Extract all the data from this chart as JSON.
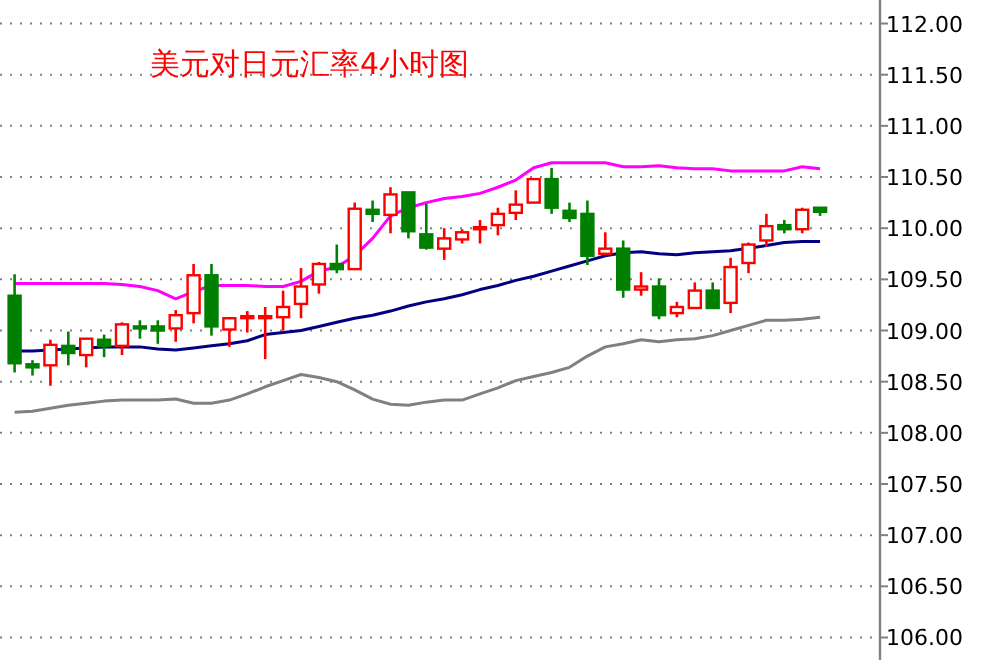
{
  "chart_data": {
    "type": "candlestick",
    "title": "美元对日元汇率4小时图",
    "categories": [
      null,
      null,
      null,
      null,
      null,
      null,
      null,
      null,
      null,
      null,
      null,
      null,
      null,
      null,
      null,
      null,
      null,
      null,
      null,
      null,
      null,
      null,
      null,
      null,
      null,
      null,
      null,
      null,
      null,
      null,
      null,
      null,
      null,
      null,
      null,
      null,
      null,
      null,
      null,
      null,
      null,
      null,
      null,
      null,
      null,
      null
    ],
    "ohlc": [
      [
        109.34,
        109.55,
        108.59,
        108.68
      ],
      [
        108.67,
        108.71,
        108.56,
        108.64
      ],
      [
        108.66,
        108.91,
        108.46,
        108.86
      ],
      [
        108.85,
        108.99,
        108.66,
        108.78
      ],
      [
        108.76,
        108.92,
        108.64,
        108.92
      ],
      [
        108.91,
        108.96,
        108.74,
        108.85
      ],
      [
        108.85,
        109.08,
        108.76,
        109.06
      ],
      [
        109.04,
        109.1,
        108.92,
        109.02
      ],
      [
        109.04,
        109.1,
        108.87,
        109.0
      ],
      [
        109.02,
        109.2,
        108.89,
        109.15
      ],
      [
        109.17,
        109.65,
        109.07,
        109.54
      ],
      [
        109.54,
        109.65,
        108.95,
        109.04
      ],
      [
        109.01,
        109.13,
        108.84,
        109.12
      ],
      [
        109.13,
        109.19,
        108.98,
        109.14
      ],
      [
        109.13,
        109.23,
        108.72,
        109.14
      ],
      [
        109.13,
        109.39,
        109.0,
        109.23
      ],
      [
        109.26,
        109.61,
        109.12,
        109.43
      ],
      [
        109.45,
        109.67,
        109.36,
        109.65
      ],
      [
        109.65,
        109.84,
        109.56,
        109.6
      ],
      [
        109.6,
        110.25,
        109.6,
        110.19
      ],
      [
        110.18,
        110.27,
        110.06,
        110.14
      ],
      [
        110.13,
        110.4,
        109.95,
        110.33
      ],
      [
        110.35,
        110.35,
        109.9,
        109.97
      ],
      [
        109.94,
        110.24,
        109.79,
        109.81
      ],
      [
        109.8,
        110.0,
        109.69,
        109.9
      ],
      [
        109.89,
        109.99,
        109.85,
        109.96
      ],
      [
        109.99,
        110.08,
        109.85,
        110.01
      ],
      [
        110.03,
        110.2,
        109.93,
        110.14
      ],
      [
        110.15,
        110.37,
        110.08,
        110.23
      ],
      [
        110.25,
        110.48,
        110.25,
        110.48
      ],
      [
        110.48,
        110.59,
        110.14,
        110.2
      ],
      [
        110.17,
        110.25,
        110.06,
        110.1
      ],
      [
        110.14,
        110.27,
        109.64,
        109.73
      ],
      [
        109.75,
        109.96,
        109.75,
        109.8
      ],
      [
        109.8,
        109.88,
        109.32,
        109.4
      ],
      [
        109.4,
        109.57,
        109.34,
        109.43
      ],
      [
        109.43,
        109.51,
        109.11,
        109.15
      ],
      [
        109.17,
        109.28,
        109.13,
        109.23
      ],
      [
        109.22,
        109.47,
        109.21,
        109.39
      ],
      [
        109.39,
        109.47,
        109.22,
        109.22
      ],
      [
        109.27,
        109.71,
        109.17,
        109.62
      ],
      [
        109.66,
        109.86,
        109.56,
        109.84
      ],
      [
        109.88,
        110.14,
        109.82,
        110.02
      ],
      [
        110.03,
        110.08,
        109.95,
        109.99
      ],
      [
        109.99,
        110.2,
        109.95,
        110.18
      ],
      [
        110.2,
        110.2,
        110.12,
        110.16
      ]
    ],
    "colors": [
      "#008000",
      "#008000",
      "#ff0000",
      "#008000",
      "#ff0000",
      "#008000",
      "#ff0000",
      "#008000",
      "#008000",
      "#ff0000",
      "#ff0000",
      "#008000",
      "#ff0000",
      "#ff0000",
      "#ff0000",
      "#ff0000",
      "#ff0000",
      "#ff0000",
      "#008000",
      "#ff0000",
      "#008000",
      "#ff0000",
      "#008000",
      "#008000",
      "#ff0000",
      "#ff0000",
      "#ff0000",
      "#ff0000",
      "#ff0000",
      "#ff0000",
      "#008000",
      "#008000",
      "#008000",
      "#ff0000",
      "#008000",
      "#ff0000",
      "#008000",
      "#ff0000",
      "#ff0000",
      "#008000",
      "#ff0000",
      "#ff0000",
      "#ff0000",
      "#008000",
      "#ff0000",
      "#008000"
    ],
    "series": [
      {
        "type": "line",
        "color": "#ff00ff",
        "values": [
          109.46,
          109.46,
          109.46,
          109.46,
          109.46,
          109.46,
          109.45,
          109.43,
          109.39,
          109.31,
          109.38,
          109.44,
          109.44,
          109.44,
          109.43,
          109.43,
          109.48,
          109.58,
          109.62,
          109.73,
          109.9,
          110.12,
          110.2,
          110.25,
          110.29,
          110.31,
          110.34,
          110.4,
          110.47,
          110.59,
          110.64,
          110.64,
          110.64,
          110.64,
          110.6,
          110.6,
          110.61,
          110.59,
          110.58,
          110.58,
          110.56,
          110.56,
          110.56,
          110.56,
          110.6,
          110.58
        ]
      },
      {
        "type": "line",
        "color": "#000080",
        "values": [
          108.8,
          108.8,
          108.81,
          108.82,
          108.83,
          108.84,
          108.84,
          108.84,
          108.82,
          108.81,
          108.83,
          108.85,
          108.87,
          108.9,
          108.96,
          108.98,
          109.0,
          109.04,
          109.08,
          109.12,
          109.15,
          109.19,
          109.24,
          109.28,
          109.31,
          109.35,
          109.4,
          109.44,
          109.49,
          109.53,
          109.58,
          109.63,
          109.68,
          109.73,
          109.76,
          109.77,
          109.75,
          109.74,
          109.76,
          109.77,
          109.78,
          null,
          109.83,
          109.86,
          109.87,
          109.87
        ]
      },
      {
        "type": "line",
        "color": "#808080",
        "values": [
          108.2,
          108.21,
          108.24,
          108.27,
          108.29,
          108.31,
          108.32,
          108.32,
          108.32,
          108.33,
          108.29,
          108.29,
          108.32,
          108.38,
          108.45,
          108.51,
          108.57,
          108.54,
          108.5,
          108.42,
          108.33,
          108.28,
          108.27,
          108.3,
          108.32,
          108.32,
          108.38,
          108.44,
          108.51,
          108.55,
          108.59,
          108.64,
          108.75,
          108.84,
          108.87,
          108.91,
          108.89,
          108.91,
          108.92,
          108.95,
          109.0,
          109.05,
          109.1,
          109.1,
          109.11,
          109.13
        ]
      }
    ],
    "ylim": [
      105.78,
      112.23
    ],
    "yticks": [
      {
        "value": 106,
        "label": "106.00"
      },
      {
        "value": 106.5,
        "label": "106.50"
      },
      {
        "value": 107,
        "label": "107.00"
      },
      {
        "value": 107.5,
        "label": "107.50"
      },
      {
        "value": 108,
        "label": "108.00"
      },
      {
        "value": 108.5,
        "label": "108.50"
      },
      {
        "value": 109,
        "label": "109.00"
      },
      {
        "value": 109.5,
        "label": "109.50"
      },
      {
        "value": 110,
        "label": "110.00"
      },
      {
        "value": 110.5,
        "label": "110.50"
      },
      {
        "value": 111,
        "label": "111.00"
      },
      {
        "value": 111.5,
        "label": "111.50"
      },
      {
        "value": 112,
        "label": "112.00"
      }
    ],
    "grid": "y"
  }
}
